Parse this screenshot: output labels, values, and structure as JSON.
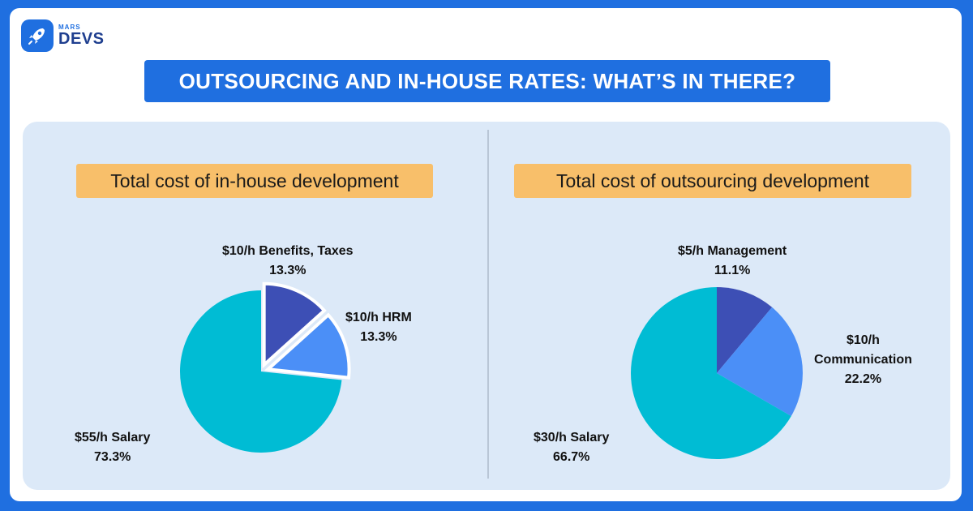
{
  "brand": {
    "small": "MARS",
    "big": "DEVS"
  },
  "banner": "OUTSOURCING AND IN-HOUSE RATES: WHAT’S IN THERE?",
  "colors": {
    "salary": "#00bcd4",
    "second": "#4b8ff7",
    "third": "#3d4fb5",
    "subtitle_bg": "#f8bf6a",
    "accent": "#1f6fe0"
  },
  "chart_data": [
    {
      "type": "pie",
      "title": "Total cost of in-house development",
      "slices": [
        {
          "label": "$10/h Benefits, Taxes",
          "value": 10,
          "percent": "13.3%",
          "color": "#3d4fb5",
          "exploded": true
        },
        {
          "label": "$10/h HRM",
          "value": 10,
          "percent": "13.3%",
          "color": "#4b8ff7",
          "exploded": true
        },
        {
          "label": "$55/h Salary",
          "value": 55,
          "percent": "73.3%",
          "color": "#00bcd4",
          "exploded": false
        }
      ]
    },
    {
      "type": "pie",
      "title": "Total cost of outsourcing development",
      "slices": [
        {
          "label": "$5/h Management",
          "value": 5,
          "percent": "11.1%",
          "color": "#3d4fb5",
          "exploded": false
        },
        {
          "label": "$10/h Communication",
          "value": 10,
          "percent": "22.2%",
          "color": "#4b8ff7",
          "exploded": false
        },
        {
          "label": "$30/h Salary",
          "value": 30,
          "percent": "66.7%",
          "color": "#00bcd4",
          "exploded": false
        }
      ]
    }
  ]
}
